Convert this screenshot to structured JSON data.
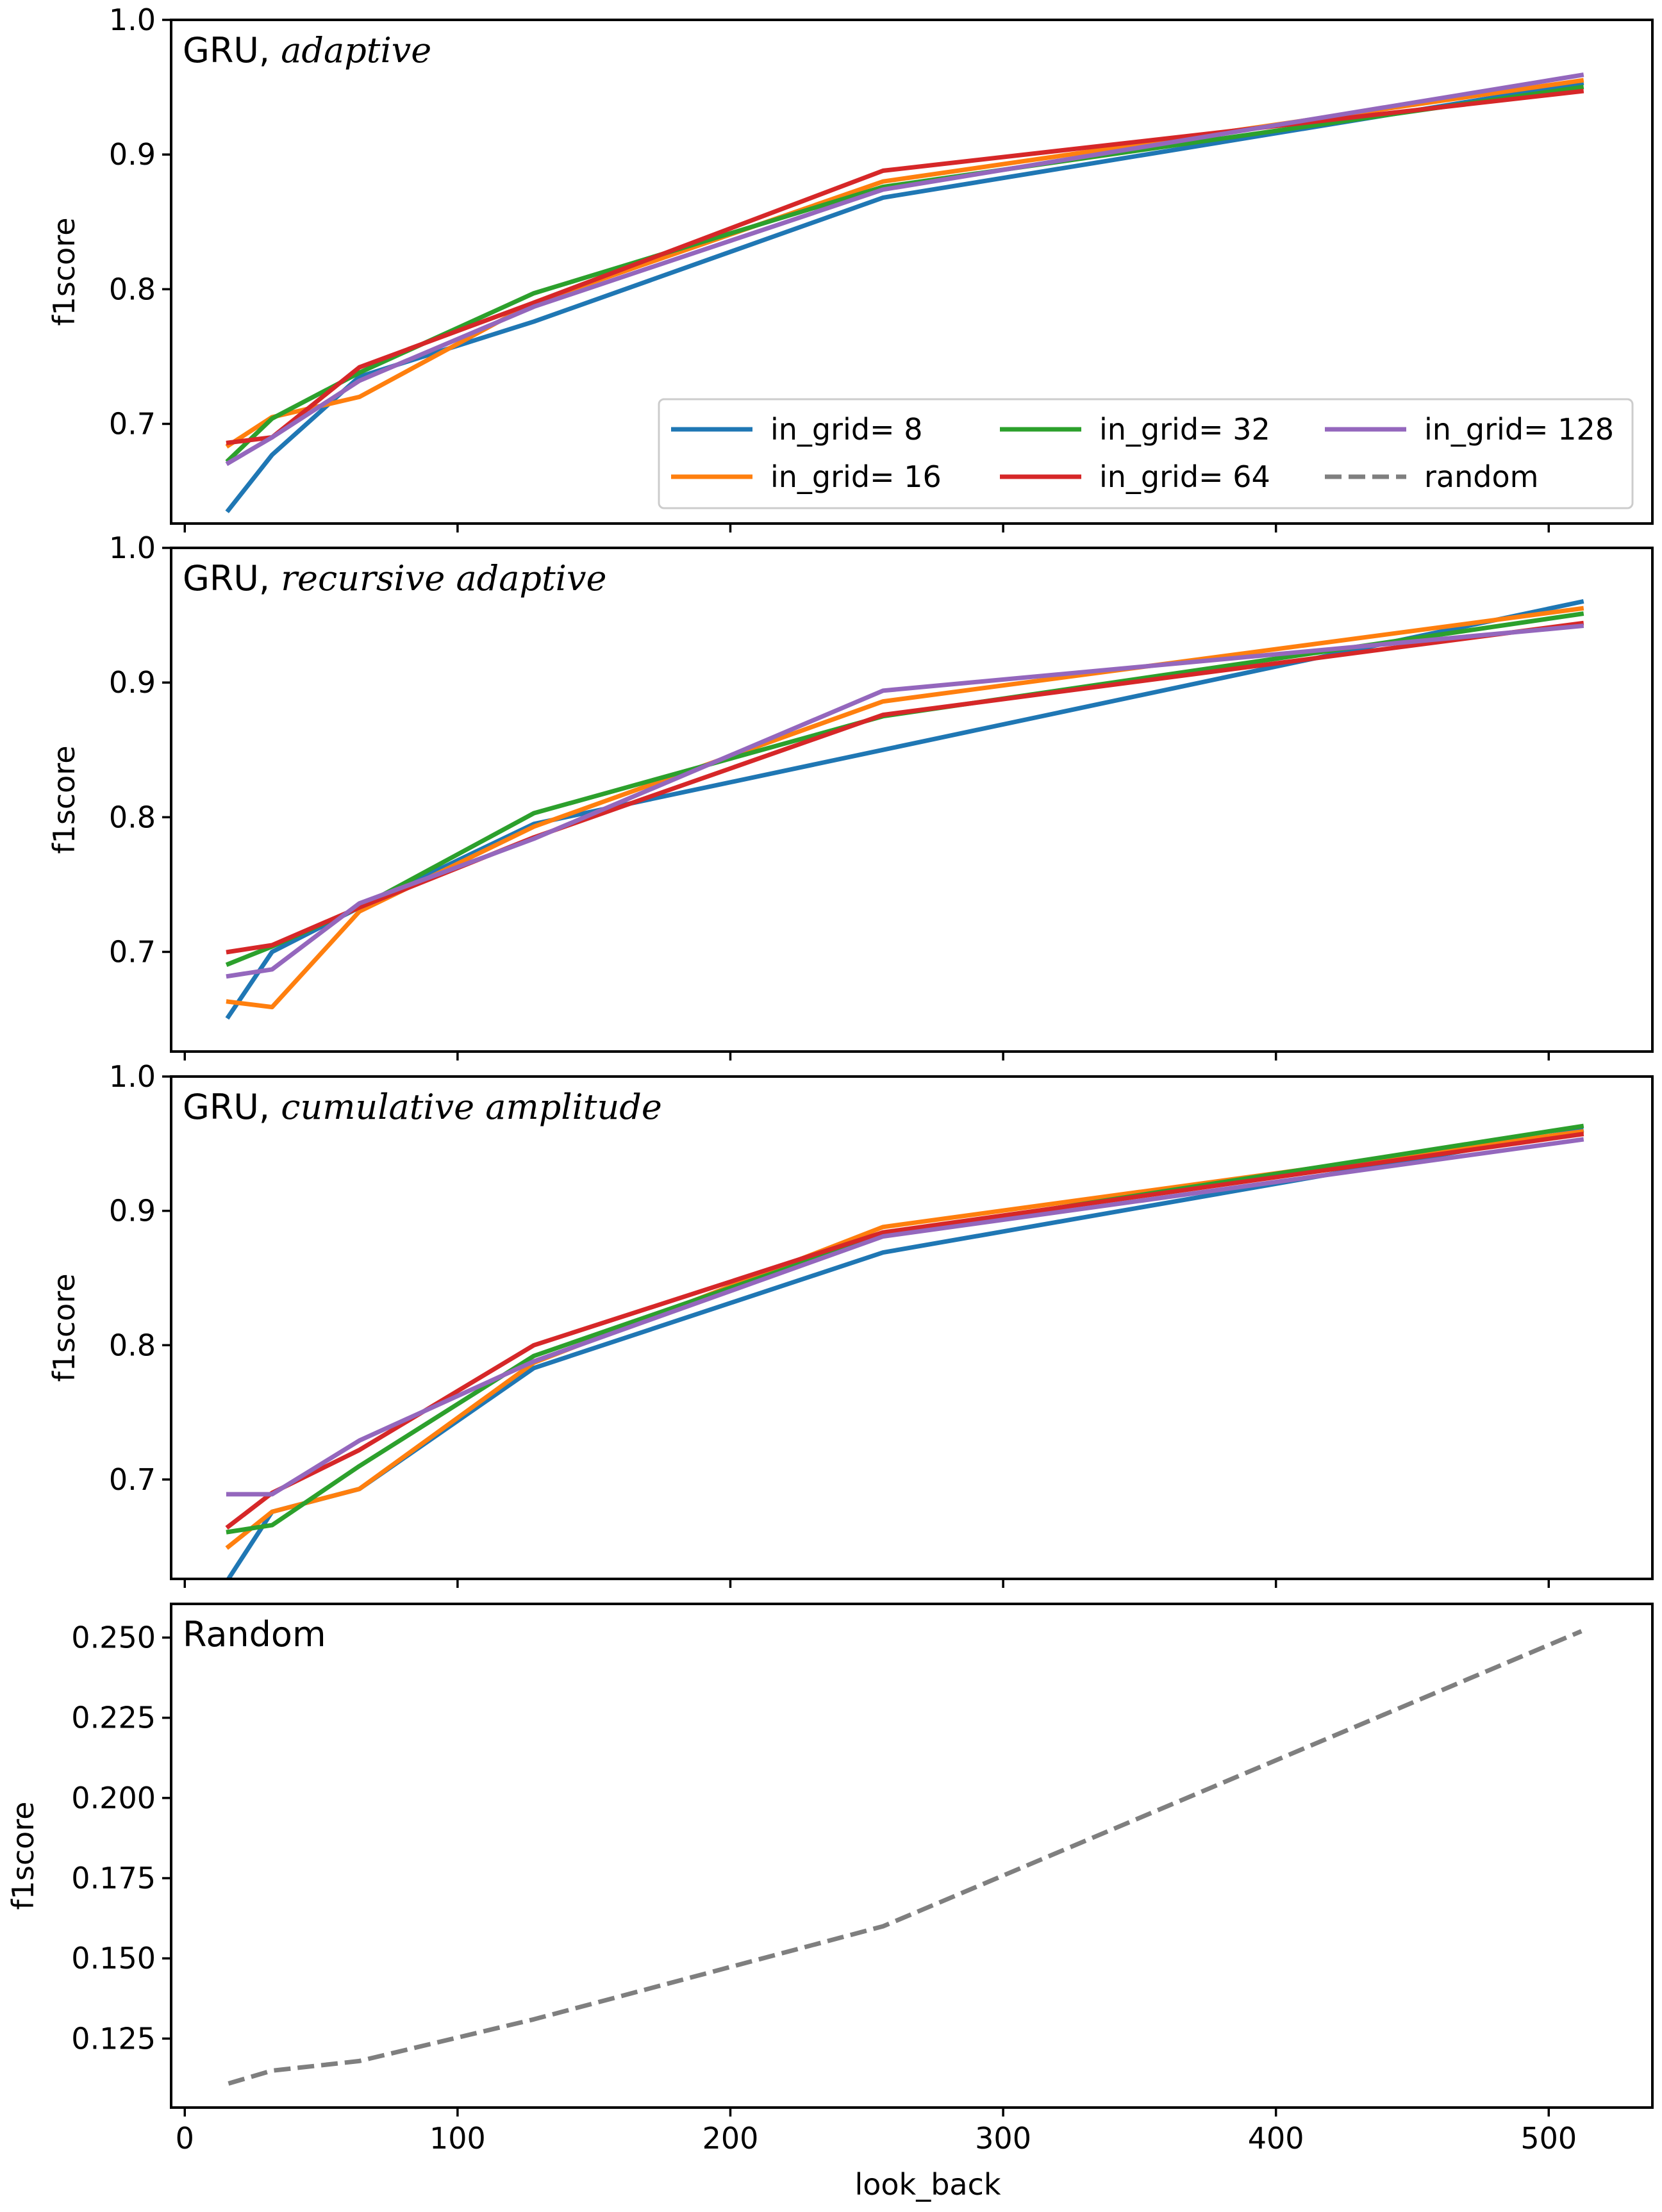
{
  "chart_data": [
    {
      "type": "line",
      "title": "GRU, adaptive",
      "title_prefix": "GRU, ",
      "title_method": "adaptive",
      "xlabel": "",
      "ylabel": "f1score",
      "xlim": [
        -5,
        538
      ],
      "ylim": [
        0.626,
        1.0
      ],
      "xticks": [
        0,
        100,
        200,
        300,
        400,
        500
      ],
      "show_xticklabels": false,
      "yticks": [
        0.7,
        0.8,
        0.9,
        1.0
      ],
      "ytick_labels": [
        "0.7",
        "0.8",
        "0.9",
        "1.0"
      ],
      "grid": false,
      "legend": {
        "position": "lower-right",
        "columns": 3,
        "entries": [
          "in_grid= 8",
          "in_grid= 16",
          "in_grid= 32",
          "in_grid= 64",
          "in_grid= 128",
          "random"
        ]
      },
      "x": [
        16,
        32,
        64,
        128,
        256,
        512
      ],
      "series": [
        {
          "name": "in_grid= 8",
          "color": "#1f77b4",
          "dashed": false,
          "values": [
            0.636,
            0.677,
            0.735,
            0.776,
            0.868,
            0.953
          ]
        },
        {
          "name": "in_grid= 16",
          "color": "#ff7f0e",
          "dashed": false,
          "values": [
            0.684,
            0.705,
            0.72,
            0.79,
            0.88,
            0.955
          ]
        },
        {
          "name": "in_grid= 32",
          "color": "#2ca02c",
          "dashed": false,
          "values": [
            0.673,
            0.704,
            0.738,
            0.797,
            0.876,
            0.95
          ]
        },
        {
          "name": "in_grid= 64",
          "color": "#d62728",
          "dashed": false,
          "values": [
            0.686,
            0.69,
            0.742,
            0.79,
            0.888,
            0.947
          ]
        },
        {
          "name": "in_grid= 128",
          "color": "#9467bd",
          "dashed": false,
          "values": [
            0.671,
            0.69,
            0.732,
            0.787,
            0.874,
            0.959
          ]
        }
      ]
    },
    {
      "type": "line",
      "title": "GRU, recursive adaptive",
      "title_prefix": "GRU, ",
      "title_method": "recursive adaptive",
      "xlabel": "",
      "ylabel": "f1score",
      "xlim": [
        -5,
        538
      ],
      "ylim": [
        0.626,
        1.0
      ],
      "xticks": [
        0,
        100,
        200,
        300,
        400,
        500
      ],
      "show_xticklabels": false,
      "yticks": [
        0.7,
        0.8,
        0.9,
        1.0
      ],
      "ytick_labels": [
        "0.7",
        "0.8",
        "0.9",
        "1.0"
      ],
      "grid": false,
      "x": [
        16,
        32,
        64,
        128,
        256,
        512
      ],
      "series": [
        {
          "name": "in_grid= 8",
          "color": "#1f77b4",
          "dashed": false,
          "values": [
            0.652,
            0.7,
            0.733,
            0.795,
            0.85,
            0.96
          ]
        },
        {
          "name": "in_grid= 16",
          "color": "#ff7f0e",
          "dashed": false,
          "values": [
            0.663,
            0.659,
            0.73,
            0.793,
            0.886,
            0.955
          ]
        },
        {
          "name": "in_grid= 32",
          "color": "#2ca02c",
          "dashed": false,
          "values": [
            0.691,
            0.704,
            0.733,
            0.803,
            0.875,
            0.951
          ]
        },
        {
          "name": "in_grid= 64",
          "color": "#d62728",
          "dashed": false,
          "values": [
            0.7,
            0.705,
            0.733,
            0.785,
            0.876,
            0.944
          ]
        },
        {
          "name": "in_grid= 128",
          "color": "#9467bd",
          "dashed": false,
          "values": [
            0.682,
            0.687,
            0.736,
            0.784,
            0.894,
            0.942
          ]
        }
      ]
    },
    {
      "type": "line",
      "title": "GRU, cumulative amplitude",
      "title_prefix": "GRU, ",
      "title_method": "cumulative amplitude",
      "xlabel": "",
      "ylabel": "f1score",
      "xlim": [
        -5,
        538
      ],
      "ylim": [
        0.626,
        1.0
      ],
      "xticks": [
        0,
        100,
        200,
        300,
        400,
        500
      ],
      "show_xticklabels": false,
      "yticks": [
        0.7,
        0.8,
        0.9,
        1.0
      ],
      "ytick_labels": [
        "0.7",
        "0.8",
        "0.9",
        "1.0"
      ],
      "grid": false,
      "x": [
        16,
        32,
        64,
        128,
        256,
        512
      ],
      "series": [
        {
          "name": "in_grid= 8",
          "color": "#1f77b4",
          "dashed": false,
          "values": [
            0.626,
            0.676,
            0.693,
            0.783,
            0.869,
            0.96
          ]
        },
        {
          "name": "in_grid= 16",
          "color": "#ff7f0e",
          "dashed": false,
          "values": [
            0.65,
            0.676,
            0.693,
            0.787,
            0.888,
            0.959
          ]
        },
        {
          "name": "in_grid= 32",
          "color": "#2ca02c",
          "dashed": false,
          "values": [
            0.661,
            0.666,
            0.71,
            0.792,
            0.882,
            0.963
          ]
        },
        {
          "name": "in_grid= 64",
          "color": "#d62728",
          "dashed": false,
          "values": [
            0.665,
            0.69,
            0.722,
            0.8,
            0.884,
            0.957
          ]
        },
        {
          "name": "in_grid= 128",
          "color": "#9467bd",
          "dashed": false,
          "values": [
            0.689,
            0.689,
            0.729,
            0.788,
            0.881,
            0.953
          ]
        }
      ]
    },
    {
      "type": "line",
      "title": "Random",
      "title_prefix": "Random",
      "title_method": "",
      "xlabel": "look_back",
      "ylabel": "f1score",
      "xlim": [
        -5,
        538
      ],
      "ylim": [
        0.1035,
        0.2605
      ],
      "xticks": [
        0,
        100,
        200,
        300,
        400,
        500
      ],
      "xtick_labels": [
        "0",
        "100",
        "200",
        "300",
        "400",
        "500"
      ],
      "show_xticklabels": true,
      "yticks": [
        0.125,
        0.15,
        0.175,
        0.2,
        0.225,
        0.25
      ],
      "ytick_labels": [
        "0.125",
        "0.150",
        "0.175",
        "0.200",
        "0.225",
        "0.250"
      ],
      "grid": false,
      "x": [
        16,
        32,
        64,
        128,
        256,
        512
      ],
      "series": [
        {
          "name": "random",
          "color": "#7f7f7f",
          "dashed": true,
          "values": [
            0.111,
            0.115,
            0.118,
            0.131,
            0.16,
            0.252
          ]
        }
      ]
    }
  ]
}
